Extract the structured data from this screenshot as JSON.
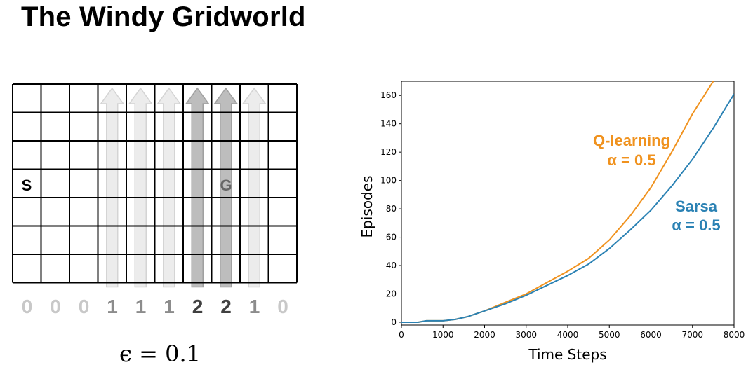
{
  "title": "The Windy Gridworld",
  "grid": {
    "start_label": "S",
    "goal_label": "G",
    "wind": [
      "0",
      "0",
      "0",
      "1",
      "1",
      "1",
      "2",
      "2",
      "1",
      "0"
    ]
  },
  "epsilon_label": "ϵ = 0.1",
  "colors": {
    "q_learning": "#f0921e",
    "sarsa": "#2b82b4",
    "wind_zero": "#c8c8c8",
    "wind_one": "#8c8c8c",
    "wind_two": "#404040"
  },
  "chart_data": {
    "type": "line",
    "xlabel": "Time Steps",
    "ylabel": "Episodes",
    "xlim": [
      0,
      8000
    ],
    "ylim": [
      -2,
      170
    ],
    "xticks": [
      0,
      1000,
      2000,
      3000,
      4000,
      5000,
      6000,
      7000,
      8000
    ],
    "yticks": [
      0,
      20,
      40,
      60,
      80,
      100,
      120,
      140,
      160
    ],
    "series": [
      {
        "name": "Q-learning",
        "name_line2": "α = 0.5",
        "x": [
          0,
          400,
          600,
          1000,
          1300,
          1600,
          1700,
          1800,
          2000,
          2500,
          3000,
          3500,
          4000,
          4500,
          5000,
          5500,
          6000,
          6500,
          7000,
          7500
        ],
        "y": [
          0,
          0,
          1,
          1,
          2,
          4,
          5,
          6,
          8,
          14,
          20,
          28,
          36,
          45,
          58,
          75,
          95,
          120,
          147,
          170
        ]
      },
      {
        "name": "Sarsa",
        "name_line2": "α = 0.5",
        "x": [
          0,
          400,
          600,
          1000,
          1300,
          1600,
          1700,
          1800,
          2000,
          2500,
          3000,
          3500,
          4000,
          4500,
          5000,
          5500,
          6000,
          6500,
          7000,
          7500,
          8000
        ],
        "y": [
          0,
          0,
          1,
          1,
          2,
          4,
          5,
          6,
          8,
          13,
          19,
          26,
          33,
          41,
          52,
          65,
          79,
          96,
          115,
          137,
          161
        ]
      }
    ]
  }
}
